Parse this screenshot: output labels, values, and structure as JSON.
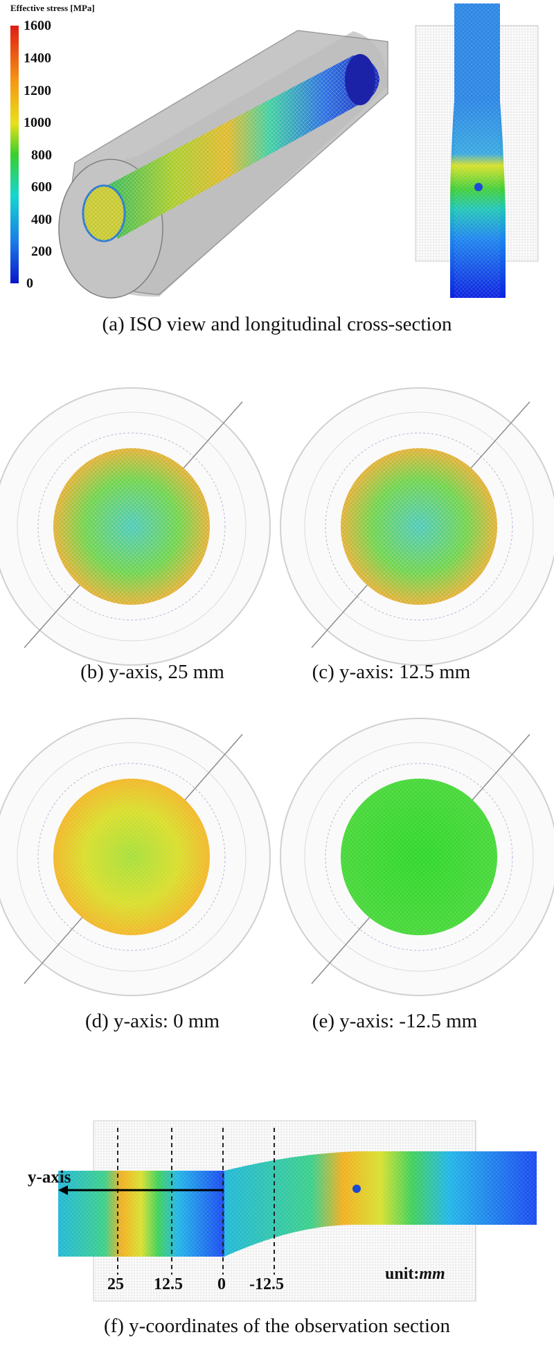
{
  "legend": {
    "title": "Effective stress [MPa]",
    "ticks": [
      "1600",
      "1400",
      "1200",
      "1000",
      "800",
      "600",
      "400",
      "200",
      "0"
    ]
  },
  "captions": {
    "a": "(a) ISO view and longitudinal cross-section",
    "b": "(b) y-axis, 25 mm",
    "c": "(c) y-axis: 12.5 mm",
    "d": "(d) y-axis: 0 mm",
    "e": "(e) y-axis: -12.5 mm",
    "f": "(f) y-coordinates of the observation section"
  },
  "section_f": {
    "axis_label": "y-axis",
    "ticks": [
      "25",
      "12.5",
      "0",
      "-12.5"
    ],
    "unit_prefix": "unit:",
    "unit": "mm"
  },
  "colors": {
    "stress_low": "#0a2fd6",
    "stress_mid": "#33d62a",
    "stress_high": "#e82a1a"
  }
}
